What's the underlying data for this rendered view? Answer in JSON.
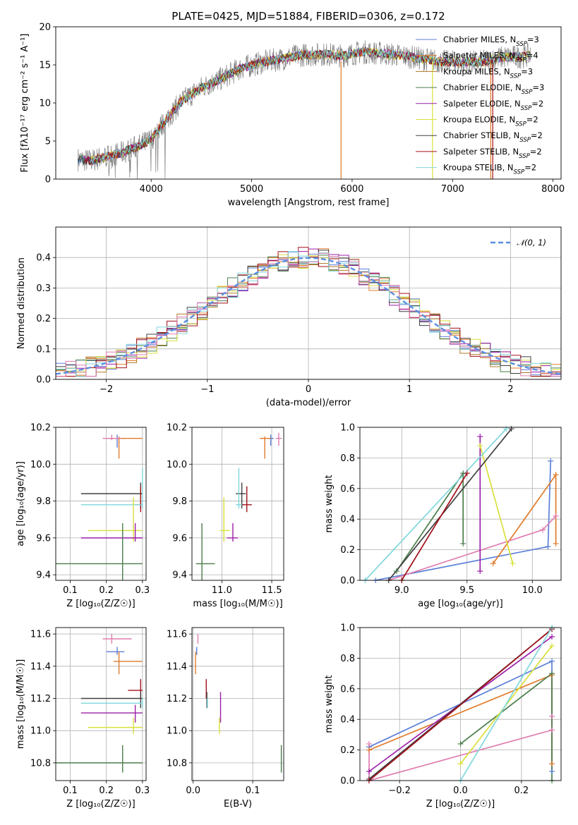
{
  "figure_title": "PLATE=0425, MJD=51884, FIBERID=0306, z=0.172",
  "colors": {
    "Chabrier MILES": "#5b7fd8",
    "Salpeter MILES": "#e07b2b",
    "Kroupa MILES": "#b07a26",
    "Chabrier ELODIE": "#4b7d4b",
    "Salpeter ELODIE": "#9a1fa8",
    "Kroupa ELODIE": "#d8e03a",
    "Chabrier STELIB": "#404040",
    "Salpeter STELIB": "#a3101a",
    "Kroupa STELIB": "#7fd7dc",
    "data": "#808080",
    "extra_pink": "#e07db0",
    "normal": "#5b8ee0"
  },
  "chart_data": [
    {
      "id": "spectrum",
      "type": "line",
      "title": "PLATE=0425, MJD=51884, FIBERID=0306, z=0.172",
      "xlabel": "wavelength [Angstrom, rest frame]",
      "ylabel": "Flux [fλ10⁻¹⁷ erg cm⁻² s⁻¹ A⁻¹]",
      "xlim": [
        3050,
        8080
      ],
      "ylim": [
        0,
        20
      ],
      "xticks": [
        4000,
        5000,
        6000,
        7000,
        8000
      ],
      "yticks": [
        0,
        5,
        10,
        15,
        20
      ],
      "x_range_data": [
        3270,
        7780
      ],
      "continuum": {
        "x": [
          3270,
          3400,
          3500,
          3700,
          3900,
          4000,
          4100,
          4300,
          4500,
          4700,
          4900,
          5100,
          5300,
          5500,
          5700,
          5900,
          6100,
          6300,
          6500,
          6700,
          6900,
          7100,
          7300,
          7500,
          7700,
          7780
        ],
        "y": [
          2.6,
          2.4,
          2.8,
          3.4,
          4.5,
          5.2,
          7.0,
          10.2,
          12.0,
          13.2,
          14.6,
          15.3,
          15.8,
          16.3,
          16.4,
          16.2,
          16.7,
          16.5,
          16.2,
          15.8,
          15.4,
          15.3,
          15.4,
          16.0,
          16.1,
          16.3
        ]
      },
      "legend_position": "right",
      "legend": [
        "Chabrier MILES, N_SSP=3",
        "Salpeter MILES, N_SSP=4",
        "Kroupa MILES, N_SSP=3",
        "Chabrier ELODIE, N_SSP=3",
        "Salpeter ELODIE, N_SSP=2",
        "Kroupa ELODIE, N_SSP=2",
        "Chabrier STELIB, N_SSP=2",
        "Salpeter STELIB, N_SSP=2",
        "Kroupa STELIB, N_SSP=2"
      ]
    },
    {
      "id": "residuals",
      "type": "line",
      "xlabel": "(data-model)/error",
      "ylabel": "Normed distribution",
      "xlim": [
        -2.5,
        2.5
      ],
      "ylim": [
        0,
        0.5
      ],
      "xticks": [
        -2,
        -1,
        0,
        1,
        2
      ],
      "yticks": [
        0.0,
        0.1,
        0.2,
        0.3,
        0.4
      ],
      "legend": [
        "𝒩(0, 1)"
      ],
      "legend_position": "top-right",
      "grid": true,
      "bins": 50
    },
    {
      "id": "age_vs_Z",
      "type": "scatter",
      "xlabel": "Z [log₁₀(Z/Z☉)]",
      "ylabel": "age  [log₁₀(age/yr)]",
      "xlim": [
        0.06,
        0.31
      ],
      "ylim": [
        9.37,
        10.2
      ],
      "xticks": [
        0.1,
        0.2,
        0.3
      ],
      "yticks": [
        9.4,
        9.6,
        9.8,
        10.0,
        10.2
      ],
      "grid": true,
      "points": [
        {
          "series": "Chabrier MILES",
          "x": 0.23,
          "y": 10.14,
          "xerr": [
            0.2,
            0.25
          ],
          "yerr": [
            10.09,
            10.16
          ]
        },
        {
          "series": "Salpeter MILES",
          "x": 0.235,
          "y": 10.14,
          "xerr": [
            0.2,
            0.3
          ],
          "yerr": [
            10.03,
            10.15
          ]
        },
        {
          "series": "extra_pink",
          "x": 0.215,
          "y": 10.14,
          "xerr": [
            0.19,
            0.24
          ],
          "yerr": [
            10.13,
            10.16
          ]
        },
        {
          "series": "Chabrier STELIB",
          "x": 0.295,
          "y": 9.84,
          "xerr": [
            0.13,
            0.3
          ],
          "yerr": [
            9.76,
            9.9
          ]
        },
        {
          "series": "Salpeter STELIB",
          "x": 0.295,
          "y": 9.78,
          "xerr": [
            0.28,
            0.3
          ],
          "yerr": [
            9.74,
            9.88
          ]
        },
        {
          "series": "Kroupa STELIB",
          "x": 0.3,
          "y": 9.78,
          "xerr": [
            0.13,
            0.3
          ],
          "yerr": [
            9.76,
            9.98
          ]
        },
        {
          "series": "Kroupa ELODIE",
          "x": 0.275,
          "y": 9.64,
          "xerr": [
            0.15,
            0.3
          ],
          "yerr": [
            9.58,
            9.82
          ]
        },
        {
          "series": "Salpeter ELODIE",
          "x": 0.28,
          "y": 9.6,
          "xerr": [
            0.13,
            0.3
          ],
          "yerr": [
            9.58,
            9.68
          ]
        },
        {
          "series": "Chabrier ELODIE",
          "x": 0.245,
          "y": 9.46,
          "xerr": [
            0.06,
            0.3
          ],
          "yerr": [
            9.37,
            9.68
          ]
        }
      ]
    },
    {
      "id": "age_vs_mass",
      "type": "scatter",
      "xlabel": "mass [log₁₀(M/M☉)]",
      "xlim": [
        10.7,
        11.62
      ],
      "ylim": [
        9.37,
        10.2
      ],
      "xticks": [
        11.0,
        11.5
      ],
      "yticks": [
        9.4,
        9.6,
        9.8,
        10.0,
        10.2
      ],
      "grid": true,
      "points": [
        {
          "series": "extra_pink",
          "x": 11.57,
          "y": 10.14,
          "xerr": [
            11.54,
            11.6
          ],
          "yerr": [
            10.1,
            10.17
          ]
        },
        {
          "series": "Chabrier MILES",
          "x": 11.49,
          "y": 10.14,
          "xerr": [
            11.47,
            11.52
          ],
          "yerr": [
            10.1,
            10.16
          ]
        },
        {
          "series": "Salpeter MILES",
          "x": 11.43,
          "y": 10.14,
          "xerr": [
            11.38,
            11.49
          ],
          "yerr": [
            10.03,
            10.15
          ]
        },
        {
          "series": "Salpeter STELIB",
          "x": 11.25,
          "y": 9.78,
          "xerr": [
            11.2,
            11.3
          ],
          "yerr": [
            9.74,
            9.88
          ]
        },
        {
          "series": "Chabrier STELIB",
          "x": 11.2,
          "y": 9.84,
          "xerr": [
            11.14,
            11.24
          ],
          "yerr": [
            9.76,
            9.9
          ]
        },
        {
          "series": "Kroupa STELIB",
          "x": 11.17,
          "y": 9.78,
          "xerr": [
            11.14,
            11.2
          ],
          "yerr": [
            9.76,
            9.98
          ]
        },
        {
          "series": "Salpeter ELODIE",
          "x": 11.11,
          "y": 9.6,
          "xerr": [
            11.05,
            11.16
          ],
          "yerr": [
            9.58,
            9.68
          ]
        },
        {
          "series": "Kroupa ELODIE",
          "x": 11.02,
          "y": 9.64,
          "xerr": [
            10.98,
            11.08
          ],
          "yerr": [
            9.58,
            9.82
          ]
        },
        {
          "series": "Chabrier ELODIE",
          "x": 10.8,
          "y": 9.46,
          "xerr": [
            10.74,
            10.93
          ],
          "yerr": [
            9.37,
            9.68
          ]
        }
      ]
    },
    {
      "id": "mass_weight_vs_age",
      "type": "line",
      "xlabel": "age  [log₁₀(age/yr)]",
      "ylabel": "mass weight",
      "xlim": [
        8.68,
        10.22
      ],
      "ylim": [
        0,
        1
      ],
      "xticks": [
        9.0,
        9.5,
        10.0
      ],
      "yticks": [
        0.0,
        0.2,
        0.4,
        0.6,
        0.8,
        1.0
      ],
      "grid": true,
      "series": [
        {
          "name": "Chabrier MILES",
          "x": [
            8.8,
            10.12,
            10.14
          ],
          "y": [
            0.0,
            0.22,
            0.78
          ]
        },
        {
          "name": "Salpeter MILES",
          "x": [
            9.7,
            10.18,
            10.18
          ],
          "y": [
            0.11,
            0.69,
            0.24
          ]
        },
        {
          "name": "extra_pink",
          "x": [
            8.9,
            10.08,
            10.18
          ],
          "y": [
            0.0,
            0.33,
            0.42
          ]
        },
        {
          "name": "Chabrier ELODIE",
          "x": [
            8.96,
            9.47,
            9.47
          ],
          "y": [
            0.06,
            0.7,
            0.24
          ]
        },
        {
          "name": "Salpeter ELODIE",
          "x": [
            9.6,
            9.6
          ],
          "y": [
            0.94,
            0.06
          ]
        },
        {
          "name": "Kroupa ELODIE",
          "x": [
            9.6,
            9.85
          ],
          "y": [
            0.88,
            0.11
          ]
        },
        {
          "name": "Chabrier STELIB",
          "x": [
            8.9,
            9.84
          ],
          "y": [
            0.0,
            0.99
          ]
        },
        {
          "name": "Salpeter STELIB",
          "x": [
            9.0,
            9.5
          ],
          "y": [
            0.0,
            0.7
          ]
        },
        {
          "name": "Kroupa STELIB",
          "x": [
            8.72,
            9.8
          ],
          "y": [
            0.0,
            0.99
          ]
        }
      ]
    },
    {
      "id": "mass_vs_Z",
      "type": "scatter",
      "xlabel": "Z [log₁₀(Z/Z☉)]",
      "ylabel": "mass [log₁₀(M/M☉)]",
      "xlim": [
        0.06,
        0.31
      ],
      "ylim": [
        10.69,
        11.64
      ],
      "xticks": [
        0.1,
        0.2,
        0.3
      ],
      "yticks": [
        10.8,
        11.0,
        11.2,
        11.4,
        11.6
      ],
      "grid": true,
      "points": [
        {
          "series": "extra_pink",
          "x": 0.215,
          "y": 11.57,
          "xerr": [
            0.19,
            0.27
          ],
          "yerr": [
            11.54,
            11.6
          ]
        },
        {
          "series": "Chabrier MILES",
          "x": 0.23,
          "y": 11.49,
          "xerr": [
            0.2,
            0.25
          ],
          "yerr": [
            11.47,
            11.52
          ]
        },
        {
          "series": "Salpeter MILES",
          "x": 0.235,
          "y": 11.43,
          "xerr": [
            0.22,
            0.3
          ],
          "yerr": [
            11.35,
            11.49
          ]
        },
        {
          "series": "Salpeter STELIB",
          "x": 0.295,
          "y": 11.25,
          "xerr": [
            0.26,
            0.3
          ],
          "yerr": [
            11.2,
            11.32
          ]
        },
        {
          "series": "Chabrier STELIB",
          "x": 0.295,
          "y": 11.2,
          "xerr": [
            0.13,
            0.3
          ],
          "yerr": [
            11.14,
            11.24
          ]
        },
        {
          "series": "Kroupa STELIB",
          "x": 0.3,
          "y": 11.17,
          "xerr": [
            0.13,
            0.3
          ],
          "yerr": [
            11.14,
            11.2
          ]
        },
        {
          "series": "Salpeter ELODIE",
          "x": 0.28,
          "y": 11.11,
          "xerr": [
            0.13,
            0.3
          ],
          "yerr": [
            11.05,
            11.16
          ]
        },
        {
          "series": "Kroupa ELODIE",
          "x": 0.275,
          "y": 11.02,
          "xerr": [
            0.15,
            0.3
          ],
          "yerr": [
            10.98,
            11.08
          ]
        },
        {
          "series": "Chabrier ELODIE",
          "x": 0.245,
          "y": 10.8,
          "xerr": [
            0.06,
            0.3
          ],
          "yerr": [
            10.74,
            10.91
          ]
        }
      ]
    },
    {
      "id": "mass_vs_ebv",
      "type": "scatter",
      "xlabel": "E(B-V)",
      "xlim": [
        -0.002,
        0.152
      ],
      "ylim": [
        10.69,
        11.64
      ],
      "xticks": [
        0.0,
        0.1
      ],
      "yticks": [
        10.8,
        11.0,
        11.2,
        11.4,
        11.6
      ],
      "grid": true,
      "points": [
        {
          "series": "extra_pink",
          "x": 0.008,
          "y": 11.57,
          "yerr": [
            11.54,
            11.6
          ]
        },
        {
          "series": "Chabrier MILES",
          "x": 0.006,
          "y": 11.49,
          "yerr": [
            11.47,
            11.52
          ]
        },
        {
          "series": "Salpeter MILES",
          "x": 0.004,
          "y": 11.43,
          "yerr": [
            11.35,
            11.49
          ]
        },
        {
          "series": "Salpeter STELIB",
          "x": 0.022,
          "y": 11.25,
          "yerr": [
            11.2,
            11.32
          ]
        },
        {
          "series": "Chabrier STELIB",
          "x": 0.023,
          "y": 11.2,
          "yerr": [
            11.14,
            11.24
          ]
        },
        {
          "series": "Kroupa STELIB",
          "x": 0.024,
          "y": 11.17,
          "yerr": [
            11.14,
            11.2
          ]
        },
        {
          "series": "Salpeter ELODIE",
          "x": 0.046,
          "y": 11.11,
          "yerr": [
            11.05,
            11.24
          ]
        },
        {
          "series": "Kroupa ELODIE",
          "x": 0.044,
          "y": 11.02,
          "yerr": [
            10.98,
            11.08
          ]
        },
        {
          "series": "Chabrier ELODIE",
          "x": 0.148,
          "y": 10.8,
          "yerr": [
            10.74,
            10.91
          ]
        }
      ]
    },
    {
      "id": "mass_weight_vs_Z",
      "type": "line",
      "xlabel": "Z [log₁₀(Z/Z☉)]",
      "ylabel": "mass weight",
      "xlim": [
        -0.33,
        0.33
      ],
      "ylim": [
        0,
        1
      ],
      "xticks": [
        -0.2,
        0.0,
        0.2
      ],
      "yticks": [
        0.0,
        0.2,
        0.4,
        0.6,
        0.8,
        1.0
      ],
      "grid": true,
      "series": [
        {
          "name": "Chabrier MILES",
          "x": [
            -0.3,
            0.3,
            0.3
          ],
          "y": [
            0.22,
            0.78,
            0.06
          ]
        },
        {
          "name": "Salpeter MILES",
          "x": [
            -0.3,
            0.3,
            0.3
          ],
          "y": [
            0.2,
            0.69,
            0.11
          ]
        },
        {
          "name": "extra_pink",
          "x": [
            -0.3,
            -0.3,
            0.3,
            0.3
          ],
          "y": [
            0.24,
            0.0,
            0.33,
            0.42
          ]
        },
        {
          "name": "Chabrier ELODIE",
          "x": [
            0.0,
            0.3,
            0.3
          ],
          "y": [
            0.24,
            0.7,
            0.0
          ]
        },
        {
          "name": "Salpeter ELODIE",
          "x": [
            -0.3,
            0.3
          ],
          "y": [
            0.06,
            0.94
          ]
        },
        {
          "name": "Kroupa ELODIE",
          "x": [
            0.0,
            0.3
          ],
          "y": [
            0.11,
            0.88
          ]
        },
        {
          "name": "Chabrier STELIB",
          "x": [
            -0.3,
            0.3
          ],
          "y": [
            0.01,
            0.99
          ]
        },
        {
          "name": "Salpeter STELIB",
          "x": [
            -0.3,
            0.3
          ],
          "y": [
            0.0,
            0.99
          ]
        },
        {
          "name": "Kroupa STELIB",
          "x": [
            0.0,
            0.3
          ],
          "y": [
            0.0,
            1.0
          ]
        }
      ]
    }
  ]
}
